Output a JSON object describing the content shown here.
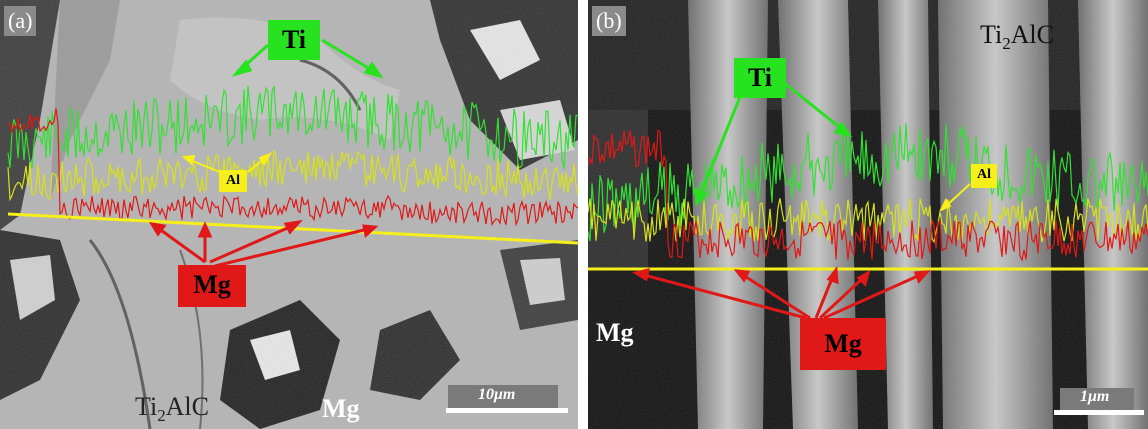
{
  "panel_a": {
    "label": "(a)",
    "element_labels": {
      "ti": "Ti",
      "al": "Al",
      "mg": "Mg"
    },
    "phase_labels": {
      "ti2alc_main": "Ti",
      "ti2alc_sub": "2",
      "ti2alc_tail": "AlC",
      "mg": "Mg"
    },
    "scale": "10μm"
  },
  "panel_b": {
    "label": "(b)",
    "element_labels": {
      "ti": "Ti",
      "al": "Al",
      "mg": "Mg"
    },
    "phase_labels": {
      "ti2alc_main": "Ti",
      "ti2alc_sub": "2",
      "ti2alc_tail": "AlC",
      "mg": "Mg"
    },
    "scale": "1μm"
  },
  "colors": {
    "ti": "#27e21f",
    "al": "#f6ef1a",
    "mg": "#e01818",
    "scan_line": "#f6ef1a"
  }
}
